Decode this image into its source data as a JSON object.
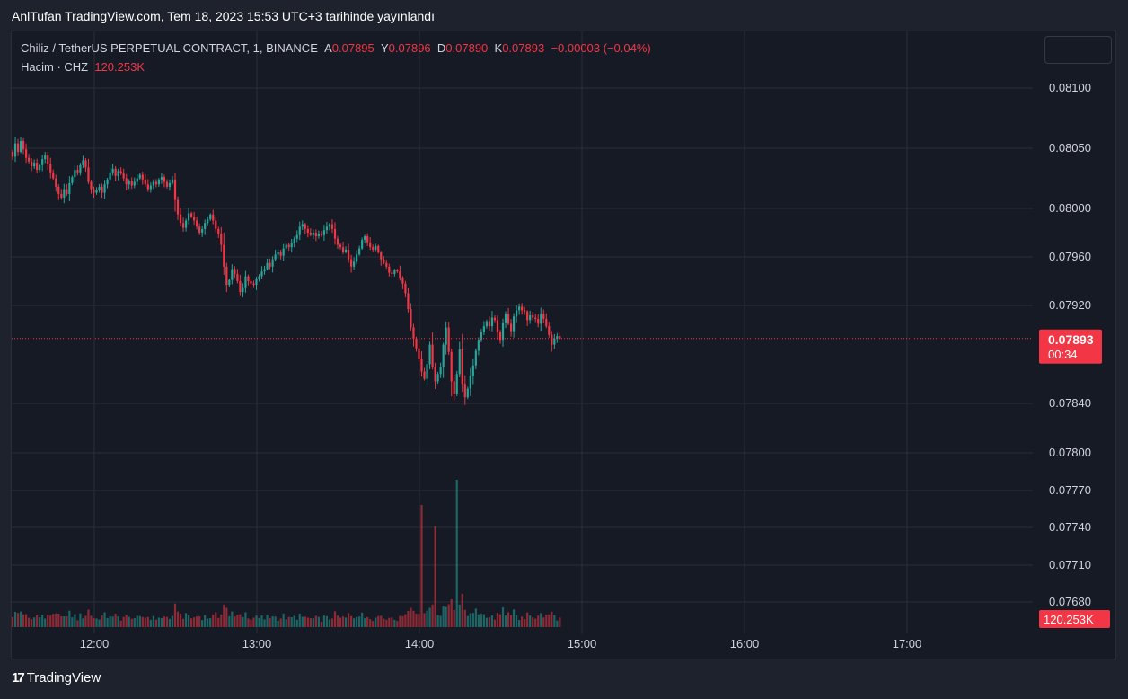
{
  "header": {
    "caption": "AnlTufan TradingView.com, Tem 18, 2023 15:53 UTC+3 tarihinde yayınlandı"
  },
  "legend": {
    "symbol": "Chiliz / TetherUS PERPETUAL CONTRACT, 1, BINANCE",
    "o_label": "A",
    "o_value": "0.07895",
    "h_label": "Y",
    "h_value": "0.07896",
    "l_label": "D",
    "l_value": "0.07890",
    "c_label": "K",
    "c_value": "0.07893",
    "change": "−0.00003 (−0.04%)",
    "volume_label": "Hacim · CHZ",
    "volume_value": "120.253K"
  },
  "footer": {
    "logo_mark": "17",
    "brand": "TradingView"
  },
  "colors": {
    "up": "#26a69a",
    "down": "#f23645",
    "background": "#161a25",
    "grid": "#2a2e39",
    "axis_text": "#d1d4dc",
    "price_label_bg": "#f23645"
  },
  "chart_data": {
    "type": "candlestick",
    "symbol": "CHZUSDT.P",
    "interval": "1",
    "current_price": "0.07893",
    "countdown": "00:34",
    "current_volume": "120.253K",
    "price_ticks": [
      "0.08100",
      "0.08050",
      "0.08000",
      "0.07960",
      "0.07920",
      "0.07840",
      "0.07800",
      "0.07770",
      "0.07740",
      "0.07710",
      "0.07680"
    ],
    "price_tick_values": [
      0.081,
      0.0805,
      0.08,
      0.0796,
      0.0792,
      0.0784,
      0.078,
      0.0777,
      0.0774,
      0.0771,
      0.0768
    ],
    "time_ticks": [
      "12:00",
      "13:00",
      "14:00",
      "15:00",
      "16:00",
      "17:00"
    ],
    "time_tick_hours": [
      12,
      13,
      14,
      15,
      16,
      17
    ],
    "grid": true,
    "series": [
      {
        "name": "close",
        "x_start": "11:30",
        "x_step_minutes": 1,
        "closes": [
          0.08043,
          0.08054,
          0.08047,
          0.08056,
          0.08049,
          0.08042,
          0.08039,
          0.08035,
          0.08038,
          0.08032,
          0.08036,
          0.08041,
          0.08044,
          0.08037,
          0.0803,
          0.08025,
          0.08018,
          0.08012,
          0.08009,
          0.08016,
          0.08012,
          0.08021,
          0.08026,
          0.08032,
          0.0803,
          0.08036,
          0.0804,
          0.08034,
          0.08022,
          0.08016,
          0.08013,
          0.08015,
          0.08018,
          0.08013,
          0.0802,
          0.08024,
          0.0803,
          0.08033,
          0.08027,
          0.08031,
          0.08029,
          0.08025,
          0.0802,
          0.08023,
          0.08019,
          0.08022,
          0.08025,
          0.08028,
          0.08024,
          0.0802,
          0.08016,
          0.08019,
          0.08022,
          0.0802,
          0.08024,
          0.08026,
          0.08022,
          0.08018,
          0.08021,
          0.08024,
          0.08007,
          0.07995,
          0.07988,
          0.07984,
          0.0799,
          0.07996,
          0.07993,
          0.0799,
          0.07985,
          0.0798,
          0.07983,
          0.07988,
          0.07991,
          0.07995,
          0.0799,
          0.07983,
          0.07979,
          0.0797,
          0.07952,
          0.07937,
          0.07941,
          0.0795,
          0.07946,
          0.0794,
          0.07931,
          0.07935,
          0.07944,
          0.0794,
          0.07938,
          0.07937,
          0.07942,
          0.07944,
          0.07948,
          0.0795,
          0.07955,
          0.07952,
          0.07958,
          0.07962,
          0.07964,
          0.07961,
          0.07967,
          0.0797,
          0.07968,
          0.07971,
          0.07975,
          0.07978,
          0.07985,
          0.07987,
          0.07983,
          0.0798,
          0.07978,
          0.0798,
          0.07977,
          0.07979,
          0.07978,
          0.07982,
          0.07985,
          0.07987,
          0.07983,
          0.07975,
          0.0797,
          0.07968,
          0.07964,
          0.07966,
          0.07958,
          0.07952,
          0.07956,
          0.07962,
          0.07967,
          0.07974,
          0.07977,
          0.07972,
          0.07968,
          0.07966,
          0.07969,
          0.07964,
          0.07958,
          0.07955,
          0.07952,
          0.07947,
          0.07946,
          0.07949,
          0.07948,
          0.07943,
          0.07938,
          0.0793,
          0.07917,
          0.07902,
          0.07893,
          0.07885,
          0.07876,
          0.07866,
          0.0786,
          0.07872,
          0.07888,
          0.0787,
          0.07858,
          0.07864,
          0.0787,
          0.07888,
          0.07902,
          0.07882,
          0.07858,
          0.07848,
          0.07864,
          0.07884,
          0.07856,
          0.07845,
          0.07852,
          0.07862,
          0.07871,
          0.07883,
          0.07892,
          0.07898,
          0.07903,
          0.07907,
          0.07903,
          0.0791,
          0.07908,
          0.07898,
          0.07892,
          0.07906,
          0.07913,
          0.07905,
          0.07899,
          0.07911,
          0.07916,
          0.07919,
          0.07916,
          0.07915,
          0.07908,
          0.07912,
          0.0791,
          0.07909,
          0.07905,
          0.07913,
          0.07909,
          0.07903,
          0.07896,
          0.07888,
          0.07893,
          0.07895,
          0.07893
        ],
        "volume_peaks_k": {
          "peak_1": 1260,
          "peak_2": 1525,
          "peak_3": 1840
        },
        "volume_last_k": 120.253
      }
    ]
  }
}
